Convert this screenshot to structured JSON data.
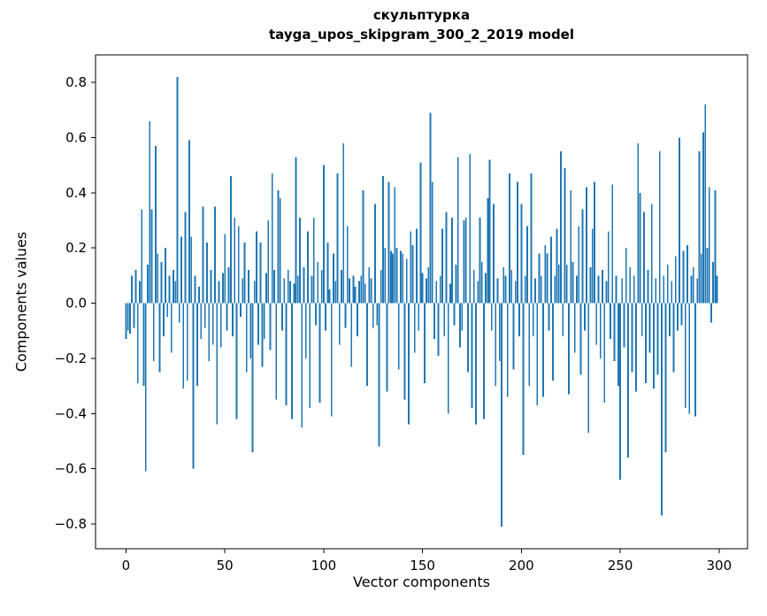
{
  "figure": {
    "title": "скульптурка",
    "subtitle": "tayga_upos_skipgram_300_2_2019 model",
    "xlabel": "Vector components",
    "ylabel": "Components values"
  },
  "chart_data": {
    "type": "bar",
    "title": "скульптурка — tayga_upos_skipgram_300_2_2019 model",
    "xlabel": "Vector components",
    "ylabel": "Components values",
    "bar_color": "#1f77b4",
    "axis_color": "#000000",
    "xlim": [
      -15.4,
      314.4
    ],
    "ylim": [
      -0.89,
      0.9
    ],
    "xticks": [
      0,
      50,
      100,
      150,
      200,
      250,
      300
    ],
    "xtick_labels": [
      "0",
      "50",
      "100",
      "150",
      "200",
      "250",
      "300"
    ],
    "yticks": [
      -0.8,
      -0.6,
      -0.4,
      -0.2,
      0.0,
      0.2,
      0.4,
      0.6,
      0.8
    ],
    "ytick_labels": [
      "−0.8",
      "−0.6",
      "−0.4",
      "−0.2",
      "0.0",
      "0.2",
      "0.4",
      "0.6",
      "0.8"
    ],
    "n_components": 300,
    "grid": false,
    "legend": false,
    "values": [
      -0.13,
      -0.1,
      -0.11,
      0.1,
      -0.09,
      0.12,
      -0.29,
      0.08,
      0.34,
      -0.3,
      -0.61,
      0.14,
      0.66,
      0.34,
      -0.21,
      0.57,
      0.18,
      -0.25,
      0.15,
      -0.12,
      0.2,
      -0.05,
      0.1,
      -0.18,
      0.12,
      0.08,
      0.82,
      -0.07,
      0.24,
      -0.31,
      0.33,
      -0.28,
      0.59,
      0.24,
      -0.6,
      0.1,
      -0.3,
      0.06,
      -0.13,
      0.35,
      -0.09,
      0.22,
      -0.21,
      0.12,
      -0.15,
      0.35,
      -0.44,
      0.08,
      -0.16,
      0.11,
      0.25,
      -0.1,
      0.13,
      0.46,
      -0.12,
      0.31,
      -0.42,
      0.28,
      -0.05,
      0.09,
      0.22,
      -0.25,
      0.12,
      -0.2,
      -0.54,
      0.08,
      0.26,
      -0.15,
      0.22,
      -0.23,
      -0.13,
      0.11,
      0.3,
      -0.17,
      0.47,
      0.12,
      -0.35,
      0.41,
      0.38,
      -0.1,
      0.09,
      -0.37,
      0.12,
      0.08,
      -0.42,
      0.07,
      0.53,
      0.1,
      0.31,
      -0.45,
      0.13,
      -0.2,
      0.26,
      -0.38,
      0.1,
      0.31,
      -0.08,
      0.15,
      -0.36,
      0.12,
      0.5,
      -0.1,
      0.22,
      0.05,
      -0.41,
      0.18,
      0.08,
      0.47,
      -0.15,
      0.12,
      0.58,
      -0.09,
      0.28,
      0.09,
      -0.23,
      0.1,
      0.06,
      -0.12,
      0.08,
      0.1,
      0.41,
      0.07,
      -0.3,
      0.13,
      0.09,
      -0.09,
      0.36,
      -0.08,
      -0.52,
      0.12,
      0.46,
      0.2,
      -0.32,
      0.44,
      0.19,
      0.18,
      0.42,
      0.2,
      -0.24,
      0.19,
      0.18,
      -0.35,
      0.16,
      -0.44,
      0.26,
      0.21,
      -0.18,
      0.27,
      -0.1,
      0.51,
      0.11,
      -0.29,
      0.09,
      0.13,
      0.69,
      0.44,
      -0.13,
      0.08,
      -0.19,
      0.1,
      0.27,
      -0.12,
      0.33,
      -0.4,
      0.07,
      0.31,
      -0.08,
      0.14,
      0.53,
      -0.16,
      -0.1,
      0.3,
      0.31,
      -0.25,
      0.54,
      -0.38,
      0.12,
      -0.44,
      0.08,
      0.31,
      0.15,
      -0.42,
      0.11,
      0.38,
      0.52,
      -0.1,
      0.36,
      -0.3,
      0.09,
      -0.21,
      -0.81,
      0.13,
      0.1,
      -0.34,
      0.47,
      0.12,
      -0.24,
      0.08,
      0.44,
      -0.12,
      0.36,
      -0.55,
      0.1,
      0.28,
      -0.3,
      0.47,
      -0.12,
      0.09,
      -0.37,
      0.18,
      0.1,
      -0.34,
      0.21,
      0.18,
      -0.1,
      0.24,
      -0.28,
      0.1,
      0.27,
      0.14,
      0.55,
      -0.12,
      0.49,
      0.14,
      -0.33,
      0.41,
      0.15,
      -0.18,
      0.1,
      0.28,
      -0.26,
      0.34,
      -0.1,
      0.42,
      -0.47,
      0.13,
      0.27,
      0.44,
      -0.15,
      0.1,
      -0.2,
      0.12,
      -0.36,
      0.08,
      0.26,
      -0.13,
      0.43,
      -0.21,
      0.1,
      -0.3,
      -0.64,
      0.09,
      -0.16,
      0.2,
      -0.56,
      0.13,
      -0.25,
      0.1,
      -0.32,
      0.58,
      0.4,
      -0.12,
      0.33,
      -0.29,
      0.12,
      -0.18,
      0.36,
      -0.31,
      0.09,
      -0.26,
      0.55,
      -0.77,
      0.1,
      -0.54,
      0.14,
      -0.12,
      0.08,
      -0.25,
      0.17,
      -0.1,
      0.6,
      -0.08,
      0.19,
      -0.38,
      0.21,
      -0.4,
      0.1,
      0.13,
      -0.41,
      0.09,
      0.55,
      0.18,
      0.62,
      0.72,
      0.2,
      0.42,
      -0.07,
      0.15,
      0.41,
      0.1
    ]
  }
}
